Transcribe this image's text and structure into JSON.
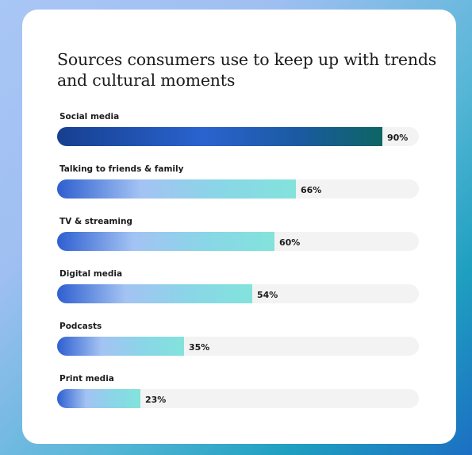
{
  "chart_data": {
    "type": "bar",
    "title": "Sources consumers use to keep up with trends and cultural moments",
    "orientation": "horizontal",
    "xlim": [
      0,
      100
    ],
    "categories": [
      "Social media",
      "Talking to friends & family",
      "TV & streaming",
      "Digital media",
      "Podcasts",
      "Print media"
    ],
    "values": [
      90,
      66,
      60,
      54,
      35,
      23
    ],
    "value_labels": [
      "90%",
      "66%",
      "60%",
      "54%",
      "35%",
      "23%"
    ]
  },
  "colors": {
    "accent_dark": "#163f8f",
    "accent_light": "#83e3dc",
    "track": "#f3f3f3"
  }
}
